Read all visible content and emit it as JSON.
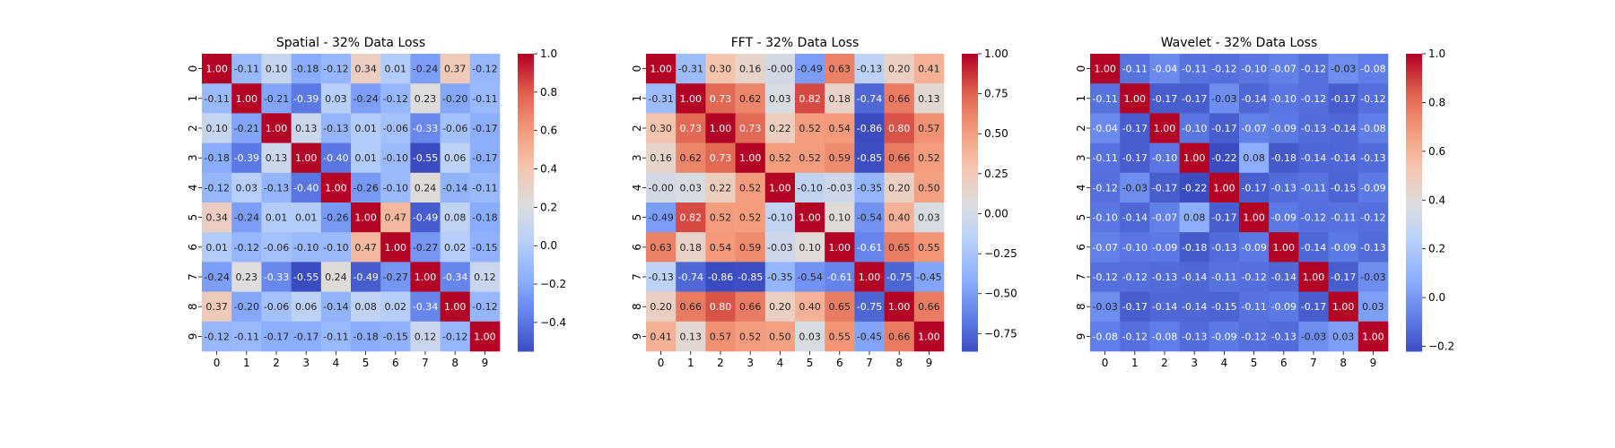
{
  "chart_data": [
    {
      "type": "heatmap",
      "title": "Spatial - 32% Data Loss",
      "xticks": [
        "0",
        "1",
        "2",
        "3",
        "4",
        "5",
        "6",
        "7",
        "8",
        "9"
      ],
      "yticks": [
        "0",
        "1",
        "2",
        "3",
        "4",
        "5",
        "6",
        "7",
        "8",
        "9"
      ],
      "colormap": "coolwarm",
      "vmin": -0.55,
      "vmax": 1.0,
      "colorbar_ticks": [
        -0.4,
        -0.2,
        0.0,
        0.2,
        0.4,
        0.6,
        0.8,
        1.0
      ],
      "colorbar_tick_labels": [
        "−0.4",
        "−0.2",
        "0.0",
        "0.2",
        "0.4",
        "0.6",
        "0.8",
        "1.0"
      ],
      "values": [
        [
          1.0,
          -0.11,
          0.1,
          -0.18,
          -0.12,
          0.34,
          0.01,
          -0.24,
          0.37,
          -0.12
        ],
        [
          -0.11,
          1.0,
          -0.21,
          -0.39,
          0.03,
          -0.24,
          -0.12,
          0.23,
          -0.2,
          -0.11
        ],
        [
          0.1,
          -0.21,
          1.0,
          0.13,
          -0.13,
          0.01,
          -0.06,
          -0.33,
          -0.06,
          -0.17
        ],
        [
          -0.18,
          -0.39,
          0.13,
          1.0,
          -0.4,
          0.01,
          -0.1,
          -0.55,
          0.06,
          -0.17
        ],
        [
          -0.12,
          0.03,
          -0.13,
          -0.4,
          1.0,
          -0.26,
          -0.1,
          0.24,
          -0.14,
          -0.11
        ],
        [
          0.34,
          -0.24,
          0.01,
          0.01,
          -0.26,
          1.0,
          0.47,
          -0.49,
          0.08,
          -0.18
        ],
        [
          0.01,
          -0.12,
          -0.06,
          -0.1,
          -0.1,
          0.47,
          1.0,
          -0.27,
          0.02,
          -0.15
        ],
        [
          -0.24,
          0.23,
          -0.33,
          -0.55,
          0.24,
          -0.49,
          -0.27,
          1.0,
          -0.34,
          0.12
        ],
        [
          0.37,
          -0.2,
          -0.06,
          0.06,
          -0.14,
          0.08,
          0.02,
          -0.34,
          1.0,
          -0.12
        ],
        [
          -0.12,
          -0.11,
          -0.17,
          -0.17,
          -0.11,
          -0.18,
          -0.15,
          0.12,
          -0.12,
          1.0
        ]
      ]
    },
    {
      "type": "heatmap",
      "title": "FFT - 32% Data Loss",
      "xticks": [
        "0",
        "1",
        "2",
        "3",
        "4",
        "5",
        "6",
        "7",
        "8",
        "9"
      ],
      "yticks": [
        "0",
        "1",
        "2",
        "3",
        "4",
        "5",
        "6",
        "7",
        "8",
        "9"
      ],
      "colormap": "coolwarm",
      "vmin": -0.86,
      "vmax": 1.0,
      "colorbar_ticks": [
        -0.75,
        -0.5,
        -0.25,
        0.0,
        0.25,
        0.5,
        0.75,
        1.0
      ],
      "colorbar_tick_labels": [
        "−0.75",
        "−0.50",
        "−0.25",
        "0.00",
        "0.25",
        "0.50",
        "0.75",
        "1.00"
      ],
      "values": [
        [
          1.0,
          -0.31,
          0.3,
          0.16,
          -0.0,
          -0.49,
          0.63,
          -0.13,
          0.2,
          0.41
        ],
        [
          -0.31,
          1.0,
          0.73,
          0.62,
          0.03,
          0.82,
          0.18,
          -0.74,
          0.66,
          0.13
        ],
        [
          0.3,
          0.73,
          1.0,
          0.73,
          0.22,
          0.52,
          0.54,
          -0.86,
          0.8,
          0.57
        ],
        [
          0.16,
          0.62,
          0.73,
          1.0,
          0.52,
          0.52,
          0.59,
          -0.85,
          0.66,
          0.52
        ],
        [
          -0.0,
          0.03,
          0.22,
          0.52,
          1.0,
          -0.1,
          -0.03,
          -0.35,
          0.2,
          0.5
        ],
        [
          -0.49,
          0.82,
          0.52,
          0.52,
          -0.1,
          1.0,
          0.1,
          -0.54,
          0.4,
          0.03
        ],
        [
          0.63,
          0.18,
          0.54,
          0.59,
          -0.03,
          0.1,
          1.0,
          -0.61,
          0.65,
          0.55
        ],
        [
          -0.13,
          -0.74,
          -0.86,
          -0.85,
          -0.35,
          -0.54,
          -0.61,
          1.0,
          -0.75,
          -0.45
        ],
        [
          0.2,
          0.66,
          0.8,
          0.66,
          0.2,
          0.4,
          0.65,
          -0.75,
          1.0,
          0.66
        ],
        [
          0.41,
          0.13,
          0.57,
          0.52,
          0.5,
          0.03,
          0.55,
          -0.45,
          0.66,
          1.0
        ]
      ]
    },
    {
      "type": "heatmap",
      "title": "Wavelet - 32% Data Loss",
      "xticks": [
        "0",
        "1",
        "2",
        "3",
        "4",
        "5",
        "6",
        "7",
        "8",
        "9"
      ],
      "yticks": [
        "0",
        "1",
        "2",
        "3",
        "4",
        "5",
        "6",
        "7",
        "8",
        "9"
      ],
      "colormap": "coolwarm",
      "vmin": -0.22,
      "vmax": 1.0,
      "colorbar_ticks": [
        -0.2,
        0.0,
        0.2,
        0.4,
        0.6,
        0.8,
        1.0
      ],
      "colorbar_tick_labels": [
        "−0.2",
        "0.0",
        "0.2",
        "0.4",
        "0.6",
        "0.8",
        "1.0"
      ],
      "values": [
        [
          1.0,
          -0.11,
          -0.04,
          -0.11,
          -0.12,
          -0.1,
          -0.07,
          -0.12,
          -0.03,
          -0.08
        ],
        [
          -0.11,
          1.0,
          -0.17,
          -0.17,
          -0.03,
          -0.14,
          -0.1,
          -0.12,
          -0.17,
          -0.12
        ],
        [
          -0.04,
          -0.17,
          1.0,
          -0.1,
          -0.17,
          -0.07,
          -0.09,
          -0.13,
          -0.14,
          -0.08
        ],
        [
          -0.11,
          -0.17,
          -0.1,
          1.0,
          -0.22,
          0.08,
          -0.18,
          -0.14,
          -0.14,
          -0.13
        ],
        [
          -0.12,
          -0.03,
          -0.17,
          -0.22,
          1.0,
          -0.17,
          -0.13,
          -0.11,
          -0.15,
          -0.09
        ],
        [
          -0.1,
          -0.14,
          -0.07,
          0.08,
          -0.17,
          1.0,
          -0.09,
          -0.12,
          -0.11,
          -0.12
        ],
        [
          -0.07,
          -0.1,
          -0.09,
          -0.18,
          -0.13,
          -0.09,
          1.0,
          -0.14,
          -0.09,
          -0.13
        ],
        [
          -0.12,
          -0.12,
          -0.13,
          -0.14,
          -0.11,
          -0.12,
          -0.14,
          1.0,
          -0.17,
          -0.03
        ],
        [
          -0.03,
          -0.17,
          -0.14,
          -0.14,
          -0.15,
          -0.11,
          -0.09,
          -0.17,
          1.0,
          0.03
        ],
        [
          -0.08,
          -0.12,
          -0.08,
          -0.13,
          -0.09,
          -0.12,
          -0.13,
          -0.03,
          0.03,
          1.0
        ]
      ]
    }
  ]
}
